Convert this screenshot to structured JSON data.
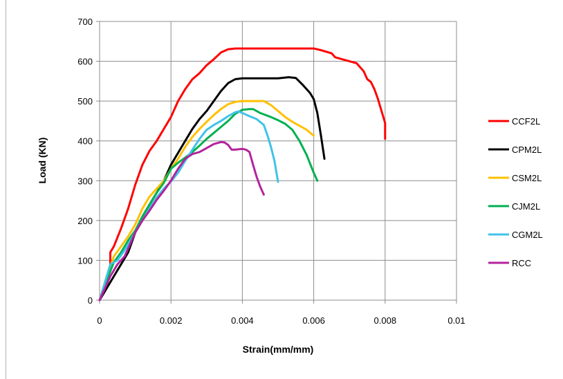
{
  "chart_data": {
    "type": "line",
    "title": "",
    "xlabel": "Strain(mm/mm)",
    "ylabel": "Load (KN)",
    "xlim": [
      0,
      0.01
    ],
    "ylim": [
      0,
      700
    ],
    "x_ticks": [
      "0",
      "0.002",
      "0.004",
      "0.006",
      "0.008",
      "0.01"
    ],
    "y_ticks": [
      "0",
      "100",
      "200",
      "300",
      "400",
      "500",
      "600",
      "700"
    ],
    "grid": true,
    "legend_position": "right",
    "series": [
      {
        "name": "CCF2L",
        "color": "#ff0000",
        "points": [
          [
            0,
            0
          ],
          [
            0.0003,
            80
          ],
          [
            0.0003,
            120
          ],
          [
            0.0004,
            135
          ],
          [
            0.0006,
            180
          ],
          [
            0.0008,
            230
          ],
          [
            0.001,
            290
          ],
          [
            0.0012,
            340
          ],
          [
            0.0014,
            375
          ],
          [
            0.0016,
            400
          ],
          [
            0.0018,
            430
          ],
          [
            0.002,
            460
          ],
          [
            0.0022,
            500
          ],
          [
            0.0024,
            530
          ],
          [
            0.0026,
            555
          ],
          [
            0.0028,
            570
          ],
          [
            0.003,
            590
          ],
          [
            0.0032,
            605
          ],
          [
            0.0034,
            622
          ],
          [
            0.0036,
            630
          ],
          [
            0.0038,
            632
          ],
          [
            0.004,
            632
          ],
          [
            0.0045,
            632
          ],
          [
            0.005,
            632
          ],
          [
            0.0055,
            632
          ],
          [
            0.006,
            632
          ],
          [
            0.0062,
            628
          ],
          [
            0.0065,
            620
          ],
          [
            0.0066,
            610
          ],
          [
            0.0068,
            605
          ],
          [
            0.007,
            600
          ],
          [
            0.0072,
            595
          ],
          [
            0.0074,
            575
          ],
          [
            0.0075,
            555
          ],
          [
            0.0076,
            548
          ],
          [
            0.0077,
            530
          ],
          [
            0.0078,
            505
          ],
          [
            0.0079,
            475
          ],
          [
            0.008,
            445
          ],
          [
            0.008,
            405
          ]
        ]
      },
      {
        "name": "CPM2L",
        "color": "#000000",
        "points": [
          [
            0,
            0
          ],
          [
            0.0002,
            30
          ],
          [
            0.0004,
            60
          ],
          [
            0.0005,
            75
          ],
          [
            0.0006,
            90
          ],
          [
            0.0008,
            120
          ],
          [
            0.001,
            170
          ],
          [
            0.0012,
            210
          ],
          [
            0.0014,
            240
          ],
          [
            0.0016,
            270
          ],
          [
            0.0018,
            300
          ],
          [
            0.002,
            340
          ],
          [
            0.0022,
            370
          ],
          [
            0.0024,
            400
          ],
          [
            0.0026,
            430
          ],
          [
            0.0028,
            455
          ],
          [
            0.003,
            475
          ],
          [
            0.0032,
            500
          ],
          [
            0.0034,
            525
          ],
          [
            0.0036,
            545
          ],
          [
            0.0038,
            555
          ],
          [
            0.004,
            557
          ],
          [
            0.0045,
            557
          ],
          [
            0.005,
            557
          ],
          [
            0.0053,
            560
          ],
          [
            0.0055,
            558
          ],
          [
            0.0057,
            540
          ],
          [
            0.0059,
            520
          ],
          [
            0.006,
            505
          ],
          [
            0.0061,
            470
          ],
          [
            0.0062,
            415
          ],
          [
            0.0063,
            355
          ]
        ]
      },
      {
        "name": "CSM2L",
        "color": "#ffc000",
        "points": [
          [
            0,
            0
          ],
          [
            0.0002,
            60
          ],
          [
            0.0004,
            110
          ],
          [
            0.0006,
            135
          ],
          [
            0.0008,
            160
          ],
          [
            0.001,
            190
          ],
          [
            0.0012,
            230
          ],
          [
            0.0014,
            260
          ],
          [
            0.0016,
            280
          ],
          [
            0.0018,
            300
          ],
          [
            0.002,
            330
          ],
          [
            0.0022,
            355
          ],
          [
            0.0024,
            385
          ],
          [
            0.0026,
            410
          ],
          [
            0.0028,
            430
          ],
          [
            0.003,
            448
          ],
          [
            0.0032,
            465
          ],
          [
            0.0034,
            480
          ],
          [
            0.0036,
            492
          ],
          [
            0.0038,
            498
          ],
          [
            0.004,
            500
          ],
          [
            0.0042,
            500
          ],
          [
            0.0044,
            500
          ],
          [
            0.0046,
            500
          ],
          [
            0.0048,
            490
          ],
          [
            0.005,
            475
          ],
          [
            0.0052,
            460
          ],
          [
            0.0054,
            448
          ],
          [
            0.0056,
            438
          ],
          [
            0.0058,
            428
          ],
          [
            0.006,
            413
          ]
        ]
      },
      {
        "name": "CJM2L",
        "color": "#00b050",
        "points": [
          [
            0,
            0
          ],
          [
            0.0002,
            50
          ],
          [
            0.0004,
            95
          ],
          [
            0.0006,
            120
          ],
          [
            0.0008,
            150
          ],
          [
            0.001,
            175
          ],
          [
            0.0012,
            210
          ],
          [
            0.0014,
            240
          ],
          [
            0.0016,
            270
          ],
          [
            0.0018,
            295
          ],
          [
            0.002,
            330
          ],
          [
            0.0022,
            345
          ],
          [
            0.0024,
            358
          ],
          [
            0.0026,
            372
          ],
          [
            0.0028,
            388
          ],
          [
            0.003,
            405
          ],
          [
            0.0032,
            420
          ],
          [
            0.0034,
            435
          ],
          [
            0.0036,
            450
          ],
          [
            0.0038,
            468
          ],
          [
            0.004,
            478
          ],
          [
            0.0042,
            480
          ],
          [
            0.0043,
            480
          ],
          [
            0.0045,
            470
          ],
          [
            0.0048,
            460
          ],
          [
            0.005,
            452
          ],
          [
            0.0052,
            443
          ],
          [
            0.0054,
            428
          ],
          [
            0.0056,
            400
          ],
          [
            0.0058,
            365
          ],
          [
            0.006,
            320
          ],
          [
            0.0061,
            300
          ]
        ]
      },
      {
        "name": "CGM2L",
        "color": "#3fc3e8",
        "points": [
          [
            0,
            0
          ],
          [
            0.0003,
            90
          ],
          [
            0.0005,
            100
          ],
          [
            0.0007,
            125
          ],
          [
            0.0008,
            140
          ],
          [
            0.001,
            170
          ],
          [
            0.0012,
            200
          ],
          [
            0.0014,
            230
          ],
          [
            0.0016,
            258
          ],
          [
            0.0018,
            280
          ],
          [
            0.002,
            298
          ],
          [
            0.0022,
            320
          ],
          [
            0.0024,
            350
          ],
          [
            0.0026,
            378
          ],
          [
            0.0028,
            405
          ],
          [
            0.003,
            428
          ],
          [
            0.0032,
            440
          ],
          [
            0.0034,
            450
          ],
          [
            0.0036,
            462
          ],
          [
            0.0038,
            472
          ],
          [
            0.0039,
            474
          ],
          [
            0.004,
            470
          ],
          [
            0.0042,
            462
          ],
          [
            0.0044,
            455
          ],
          [
            0.0046,
            440
          ],
          [
            0.0047,
            415
          ],
          [
            0.0048,
            385
          ],
          [
            0.0049,
            350
          ],
          [
            0.005,
            297
          ]
        ]
      },
      {
        "name": "RCC",
        "color": "#b4229d",
        "points": [
          [
            0,
            0
          ],
          [
            0.0003,
            60
          ],
          [
            0.0005,
            90
          ],
          [
            0.0007,
            110
          ],
          [
            0.001,
            170
          ],
          [
            0.0012,
            200
          ],
          [
            0.0014,
            225
          ],
          [
            0.0016,
            252
          ],
          [
            0.0018,
            275
          ],
          [
            0.002,
            300
          ],
          [
            0.0022,
            330
          ],
          [
            0.0024,
            355
          ],
          [
            0.0026,
            367
          ],
          [
            0.0028,
            372
          ],
          [
            0.003,
            382
          ],
          [
            0.0032,
            392
          ],
          [
            0.0034,
            397
          ],
          [
            0.0035,
            396
          ],
          [
            0.0036,
            390
          ],
          [
            0.0037,
            378
          ],
          [
            0.0038,
            378
          ],
          [
            0.004,
            380
          ],
          [
            0.0041,
            378
          ],
          [
            0.0042,
            372
          ],
          [
            0.0043,
            340
          ],
          [
            0.0044,
            310
          ],
          [
            0.0045,
            285
          ],
          [
            0.0046,
            265
          ]
        ]
      }
    ]
  }
}
